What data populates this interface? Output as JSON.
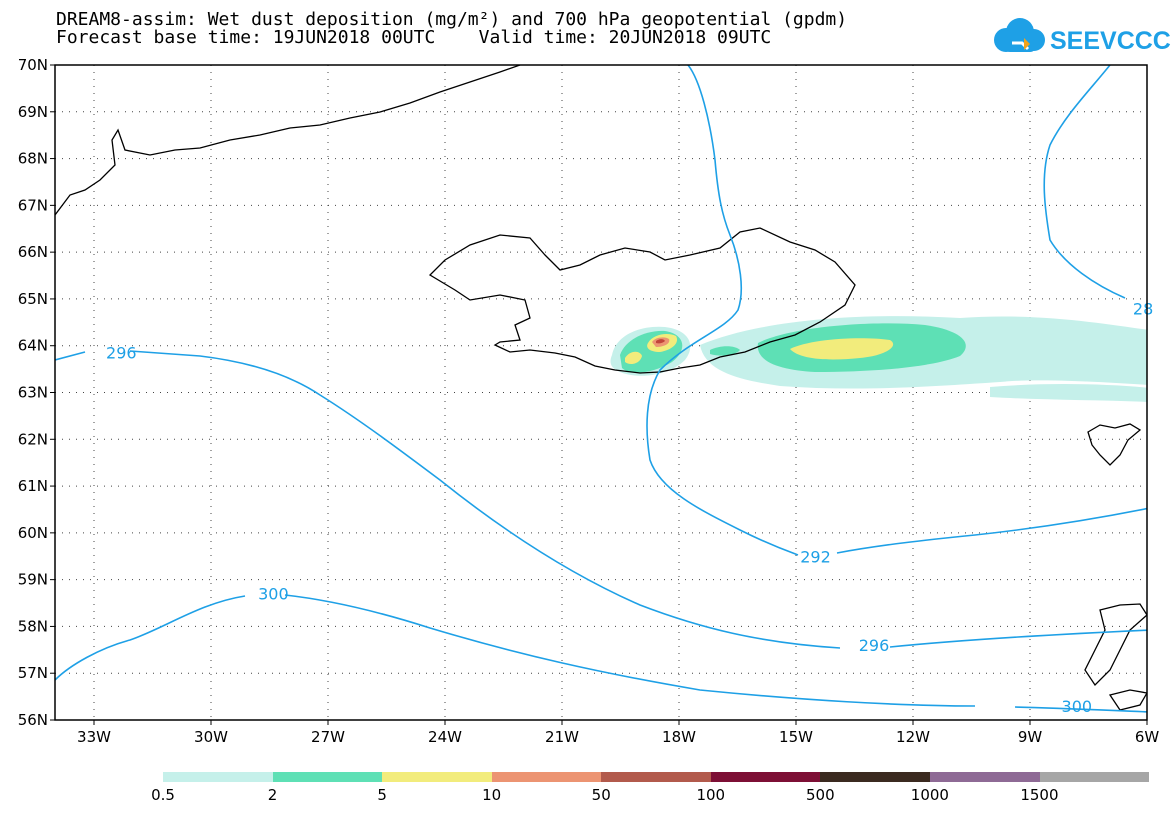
{
  "title": {
    "line1": "DREAM8-assim: Wet dust deposition (mg/m²) and 700 hPa geopotential (gpdm)",
    "line2": "Forecast base time: 19JUN2018 00UTC    Valid time: 20JUN2018 09UTC"
  },
  "logo": {
    "text": "SEEVCCC",
    "icon": "cloud-icon",
    "color": "#1ea0e6"
  },
  "axes": {
    "lat_labels": [
      "70N",
      "69N",
      "68N",
      "67N",
      "66N",
      "65N",
      "64N",
      "63N",
      "62N",
      "61N",
      "60N",
      "59N",
      "58N",
      "57N",
      "56N"
    ],
    "lon_labels": [
      "33W",
      "30W",
      "27W",
      "24W",
      "21W",
      "18W",
      "15W",
      "12W",
      "9W",
      "6W"
    ]
  },
  "contours": {
    "color": "#1ea0e6",
    "labels": [
      {
        "text": "296",
        "lon": -32.3,
        "lat": 63.85
      },
      {
        "text": "300",
        "lon": -28.4,
        "lat": 58.7
      },
      {
        "text": "292",
        "lon": -14.5,
        "lat": 59.5
      },
      {
        "text": "296",
        "lon": -13.0,
        "lat": 57.6
      },
      {
        "text": "300",
        "lon": -7.8,
        "lat": 56.3
      },
      {
        "text": "28",
        "lon": -6.1,
        "lat": 64.8
      }
    ]
  },
  "legend": {
    "labels": [
      "0.5",
      "2",
      "5",
      "10",
      "50",
      "100",
      "500",
      "1000",
      "1500"
    ],
    "colors": [
      "#c5f0ea",
      "#5ee0b5",
      "#f2ec7c",
      "#ec9472",
      "#b25a4c",
      "#7d0f35",
      "#3b2a20",
      "#8e6a95",
      "#a6a6a6"
    ]
  }
}
